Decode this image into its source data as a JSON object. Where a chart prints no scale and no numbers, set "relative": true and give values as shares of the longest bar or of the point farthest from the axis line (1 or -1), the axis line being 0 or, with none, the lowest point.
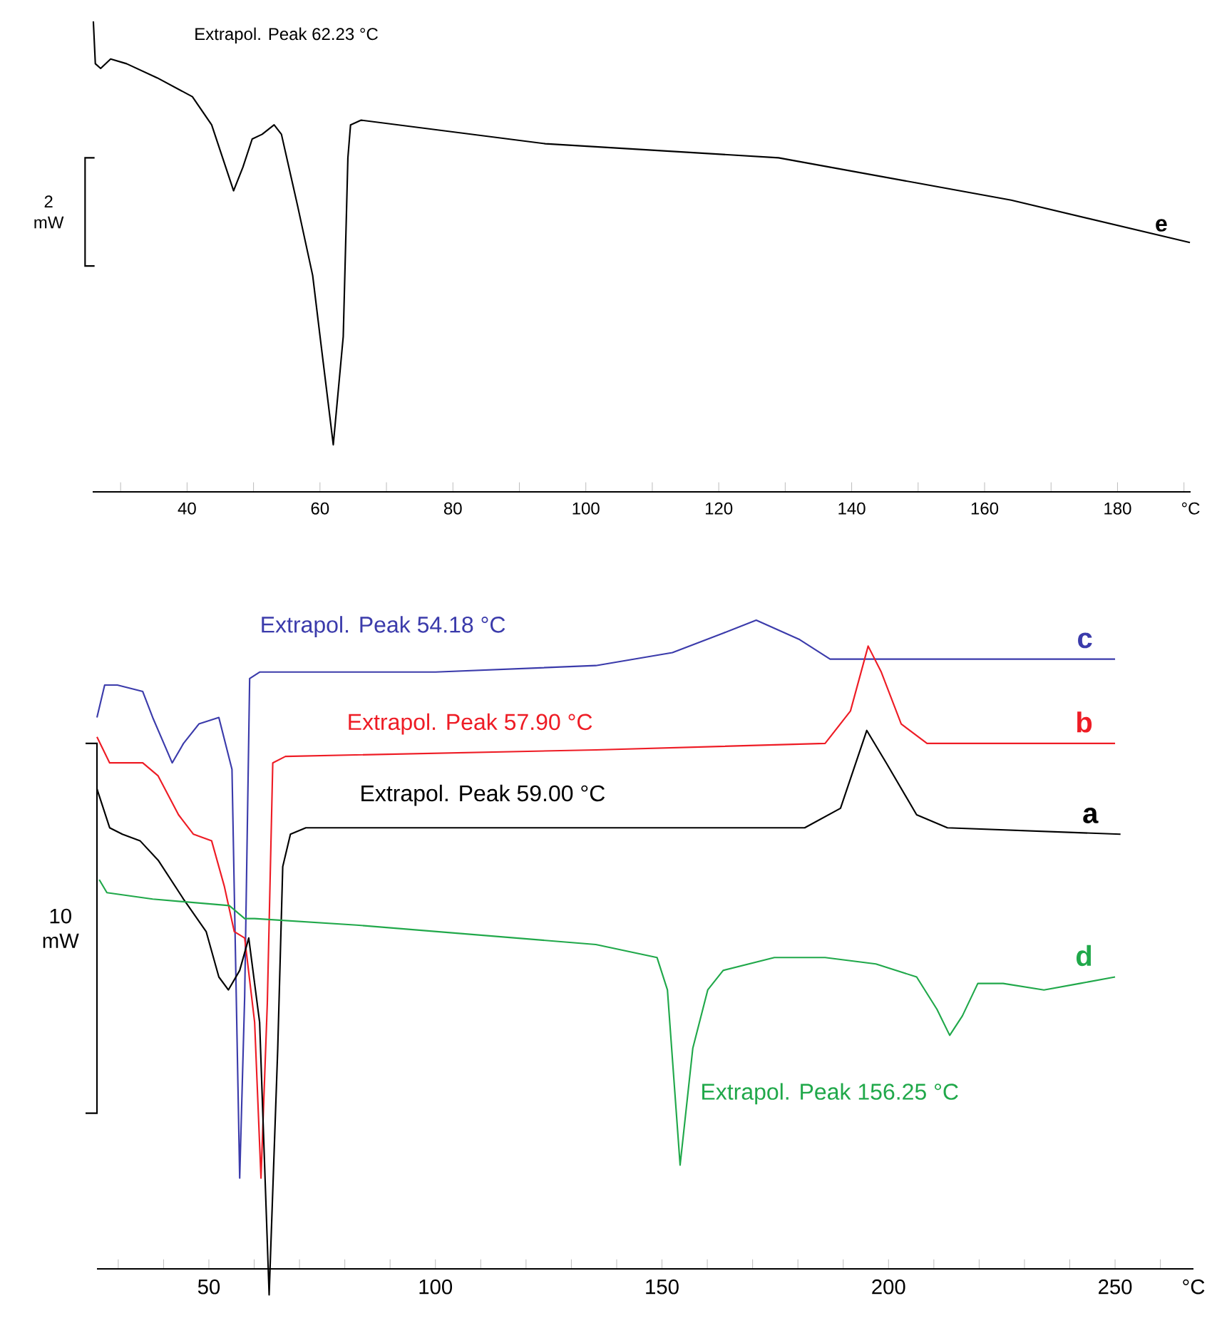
{
  "chart_data": [
    {
      "type": "line",
      "relative": true,
      "tick_labels": "x",
      "xlabel": "°C",
      "xlim": [
        25.8,
        191
      ],
      "xticks": [
        {
          "value": 30,
          "label": null
        },
        40,
        {
          "value": 50,
          "label": null
        },
        60,
        {
          "value": 70,
          "label": null
        },
        80,
        {
          "value": 90,
          "label": null
        },
        100,
        {
          "value": 110,
          "label": null
        },
        120,
        {
          "value": 130,
          "label": null
        },
        140,
        {
          "value": 150,
          "label": null
        },
        160,
        {
          "value": 170,
          "label": null
        },
        180,
        {
          "value": 190,
          "label": null
        }
      ],
      "series": [
        {
          "name": "e",
          "color": "#000000",
          "x": [
            25.9,
            26.2,
            27.0,
            28.5,
            30.9,
            35.5,
            40.8,
            43.7,
            47.0,
            48.4,
            49.8,
            51.3,
            53.1,
            54.2,
            56.6,
            58.9,
            60.1,
            62.0,
            63.5,
            64.2,
            64.6,
            66.2,
            93.9,
            129,
            164,
            190.9
          ],
          "values": [
            1.0,
            0.91,
            0.9,
            0.92,
            0.91,
            0.88,
            0.84,
            0.78,
            0.64,
            0.69,
            0.75,
            0.76,
            0.78,
            0.76,
            0.61,
            0.46,
            0.32,
            0.1,
            0.33,
            0.71,
            0.78,
            0.79,
            0.74,
            0.71,
            0.62,
            0.53
          ]
        }
      ],
      "annotations": [
        "Extrapol. Peak 62.23 °C",
        "2 mW"
      ]
    },
    {
      "type": "line",
      "relative": true,
      "tick_labels": "x",
      "xlabel": "°C",
      "xlim": [
        25.3,
        267.3
      ],
      "xticks": [
        {
          "value": 30,
          "label": null
        },
        {
          "value": 40,
          "label": null
        },
        50,
        {
          "value": 60,
          "label": null
        },
        {
          "value": 70,
          "label": null
        },
        {
          "value": 80,
          "label": null
        },
        {
          "value": 90,
          "label": null
        },
        100,
        {
          "value": 110,
          "label": null
        },
        {
          "value": 120,
          "label": null
        },
        {
          "value": 130,
          "label": null
        },
        {
          "value": 140,
          "label": null
        },
        150,
        {
          "value": 160,
          "label": null
        },
        {
          "value": 170,
          "label": null
        },
        {
          "value": 180,
          "label": null
        },
        {
          "value": 190,
          "label": null
        },
        200,
        {
          "value": 210,
          "label": null
        },
        {
          "value": 220,
          "label": null
        },
        {
          "value": 230,
          "label": null
        },
        {
          "value": 240,
          "label": null
        },
        250,
        {
          "value": 260,
          "label": null
        }
      ],
      "series": [
        {
          "name": "c",
          "color": "#3b3bab",
          "x": [
            25.3,
            27.0,
            29.8,
            35.4,
            37.6,
            41.9,
            44.4,
            47.8,
            52.2,
            55.1,
            56.8,
            57.9,
            59.0,
            61.2,
            100,
            135.4,
            152.3,
            163.5,
            170.8,
            180.4,
            187.1,
            192.7,
            208.5,
            250
          ],
          "values": [
            0.85,
            0.9,
            0.9,
            0.89,
            0.85,
            0.78,
            0.81,
            0.84,
            0.85,
            0.77,
            0.14,
            0.42,
            0.91,
            0.92,
            0.92,
            0.93,
            0.95,
            0.98,
            1.0,
            0.97,
            0.94,
            0.94,
            0.94,
            0.94
          ]
        },
        {
          "name": "b",
          "color": "#ee1c25",
          "x": [
            25.3,
            28.1,
            35.4,
            38.8,
            43.3,
            46.6,
            50.6,
            53.4,
            55.6,
            57.9,
            60.1,
            61.5,
            62.9,
            64.1,
            66.9,
            135.4,
            186.0,
            191.6,
            195.5,
            198.4,
            202.8,
            208.5,
            250
          ],
          "values": [
            0.82,
            0.78,
            0.78,
            0.76,
            0.7,
            0.67,
            0.66,
            0.59,
            0.52,
            0.51,
            0.38,
            0.14,
            0.41,
            0.78,
            0.79,
            0.8,
            0.81,
            0.86,
            0.96,
            0.92,
            0.84,
            0.81,
            0.81
          ]
        },
        {
          "name": "a",
          "color": "#000000",
          "x": [
            25.3,
            28.1,
            30.9,
            34.8,
            38.8,
            44.4,
            49.4,
            52.2,
            54.3,
            56.8,
            58.8,
            61.2,
            63.3,
            65.2,
            66.3,
            68.0,
            71.4,
            135.4,
            181.5,
            189.4,
            195.2,
            199.5,
            206.2,
            213.0,
            251.2
          ],
          "values": [
            0.74,
            0.68,
            0.67,
            0.66,
            0.63,
            0.57,
            0.52,
            0.45,
            0.43,
            0.46,
            0.51,
            0.38,
            -0.04,
            0.34,
            0.62,
            0.67,
            0.68,
            0.68,
            0.68,
            0.71,
            0.83,
            0.78,
            0.7,
            0.68,
            0.67
          ]
        },
        {
          "name": "d",
          "color": "#20a84a",
          "x": [
            25.8,
            27.5,
            37.6,
            54.5,
            57.9,
            60.1,
            82.6,
            135.4,
            148.9,
            151.2,
            154.0,
            156.8,
            160.1,
            163.5,
            174.8,
            186.0,
            197.2,
            206.2,
            210.7,
            213.5,
            216.3,
            219.7,
            225.3,
            234.3,
            242.2,
            250
          ],
          "values": [
            0.6,
            0.58,
            0.57,
            0.56,
            0.54,
            0.54,
            0.53,
            0.5,
            0.48,
            0.43,
            0.16,
            0.34,
            0.43,
            0.46,
            0.48,
            0.48,
            0.47,
            0.45,
            0.4,
            0.36,
            0.39,
            0.44,
            0.44,
            0.43,
            0.44,
            0.45
          ]
        }
      ],
      "annotations": [
        "Extrapol. Peak 54.18 °C",
        "Extrapol. Peak 57.90 °C",
        "Extrapol. Peak 59.00 °C",
        "Extrapol. Peak 156.25 °C",
        "10 mW"
      ]
    }
  ]
}
